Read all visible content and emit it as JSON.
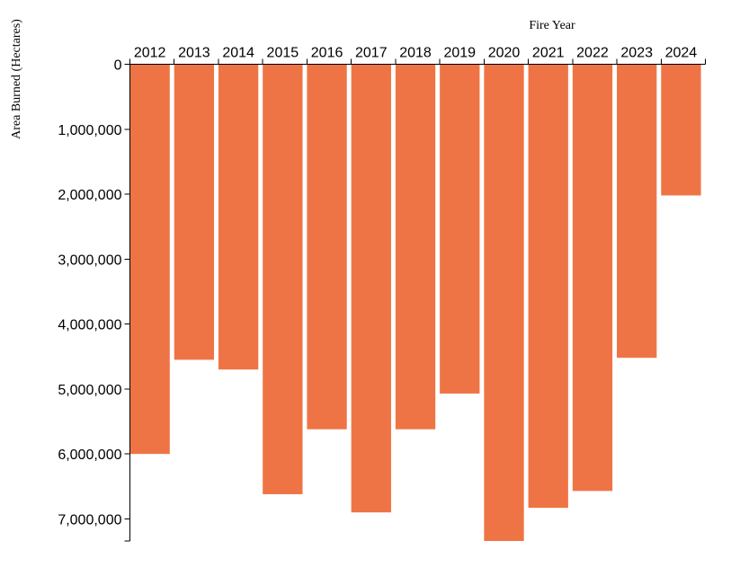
{
  "chart_data": {
    "type": "bar",
    "orientation": "downward",
    "x_axis_position": "top",
    "title": "",
    "xlabel": "Fire Year",
    "ylabel": "Area Burned (Hectares)",
    "categories": [
      "2012",
      "2013",
      "2014",
      "2015",
      "2016",
      "2017",
      "2018",
      "2019",
      "2020",
      "2021",
      "2022",
      "2023",
      "2024"
    ],
    "values": [
      6000000,
      4550000,
      4700000,
      6620000,
      5620000,
      6900000,
      5620000,
      5070000,
      7340000,
      6830000,
      6570000,
      4520000,
      2020000
    ],
    "ylim": [
      0,
      7340000
    ],
    "y_ticks": [
      0,
      1000000,
      2000000,
      3000000,
      4000000,
      5000000,
      6000000,
      7000000
    ],
    "y_tick_labels": [
      "0",
      "1,000,000",
      "2,000,000",
      "3,000,000",
      "4,000,000",
      "5,000,000",
      "6,000,000",
      "7,000,000"
    ],
    "bar_color": "#ef7445",
    "grid": false,
    "legend": "none"
  }
}
